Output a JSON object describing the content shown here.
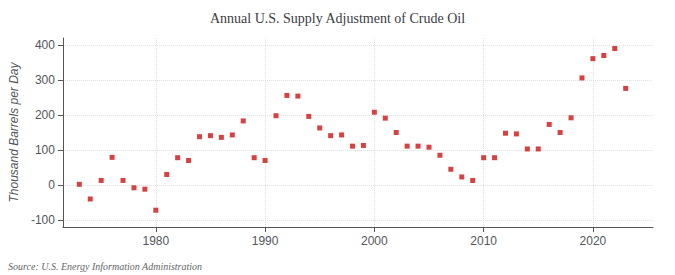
{
  "chart_data": {
    "type": "scatter",
    "title": "Annual U.S. Supply Adjustment of Crude Oil",
    "ylabel": "Thousand Barrels per Day",
    "annotations": [
      "Source: U.S. Energy Information Administration"
    ],
    "x": [
      1973,
      1974,
      1975,
      1976,
      1977,
      1978,
      1979,
      1980,
      1981,
      1982,
      1983,
      1984,
      1985,
      1986,
      1987,
      1988,
      1989,
      1990,
      1991,
      1992,
      1993,
      1994,
      1995,
      1996,
      1997,
      1998,
      1999,
      2000,
      2001,
      2002,
      2003,
      2004,
      2005,
      2006,
      2007,
      2008,
      2009,
      2010,
      2011,
      2012,
      2013,
      2014,
      2015,
      2016,
      2017,
      2018,
      2019,
      2020,
      2021,
      2022,
      2023
    ],
    "values": [
      2,
      -40,
      13,
      79,
      13,
      -8,
      -12,
      -72,
      30,
      78,
      70,
      138,
      141,
      136,
      143,
      183,
      78,
      70,
      198,
      256,
      254,
      196,
      163,
      141,
      143,
      111,
      113,
      208,
      191,
      150,
      111,
      111,
      108,
      85,
      45,
      23,
      13,
      78,
      78,
      148,
      146,
      103,
      103,
      173,
      150,
      192,
      306,
      361,
      370,
      390,
      276
    ],
    "color": "#cc1111",
    "marker": "square",
    "xlim": [
      1971.5,
      2025.5
    ],
    "xticks": [
      1980,
      1990,
      2000,
      2010,
      2020
    ],
    "ylim": [
      -120,
      420
    ],
    "yticks": [
      -100,
      0,
      100,
      200,
      300,
      400
    ],
    "grid": true
  }
}
